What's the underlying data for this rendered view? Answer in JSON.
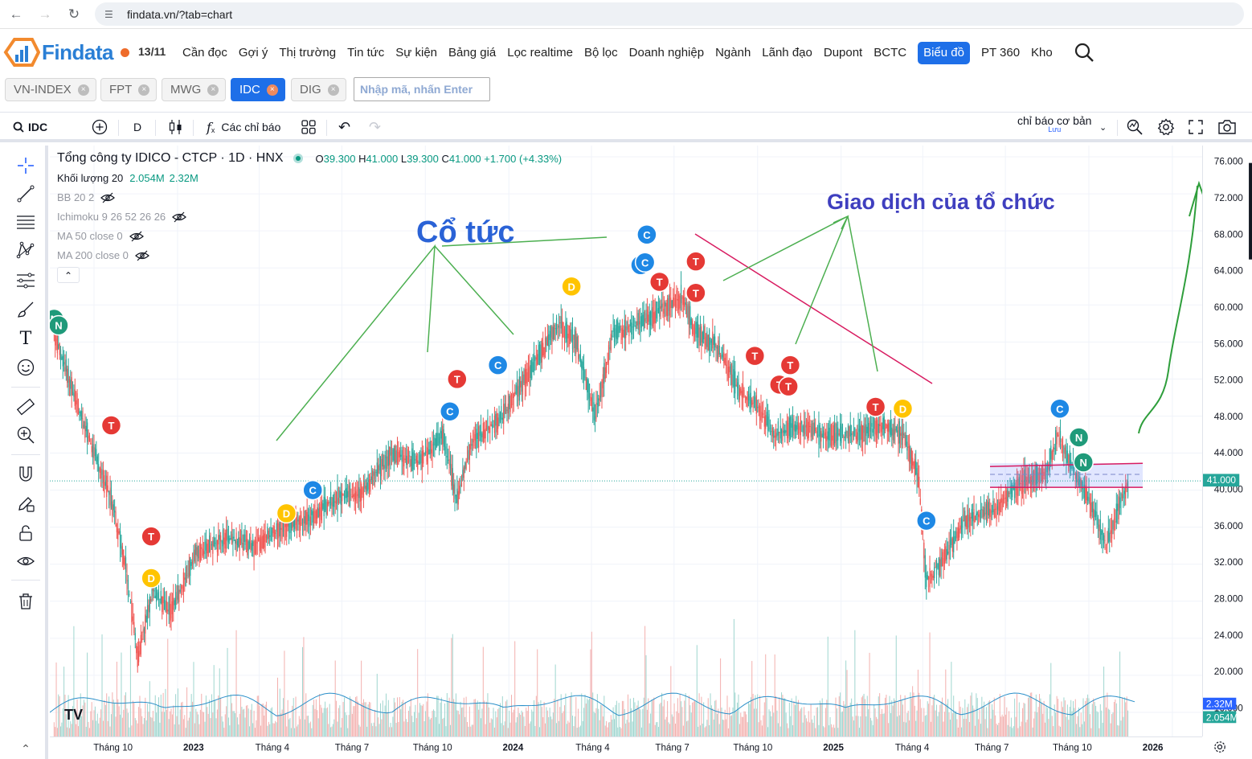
{
  "browser": {
    "url": "findata.vn/?tab=chart"
  },
  "site": {
    "logo_text": "Findata",
    "date": "13/11",
    "menu": [
      {
        "label": "Cần đọc",
        "active": false
      },
      {
        "label": "Gợi ý",
        "active": false
      },
      {
        "label": "Thị trường",
        "active": false
      },
      {
        "label": "Tin tức",
        "active": false
      },
      {
        "label": "Sự kiện",
        "active": false
      },
      {
        "label": "Bảng giá",
        "active": false
      },
      {
        "label": "Lọc realtime",
        "active": false
      },
      {
        "label": "Bộ lọc",
        "active": false
      },
      {
        "label": "Doanh nghiệp",
        "active": false
      },
      {
        "label": "Ngành",
        "active": false
      },
      {
        "label": "Lãnh đạo",
        "active": false
      },
      {
        "label": "Dupont",
        "active": false
      },
      {
        "label": "BCTC",
        "active": false
      },
      {
        "label": "Biểu đồ",
        "active": true
      },
      {
        "label": "PT 360",
        "active": false
      },
      {
        "label": "Kho",
        "active": false
      }
    ]
  },
  "tickers": [
    {
      "label": "VN-INDEX",
      "active": false
    },
    {
      "label": "FPT",
      "active": false
    },
    {
      "label": "MWG",
      "active": false
    },
    {
      "label": "IDC",
      "active": true
    },
    {
      "label": "DIG",
      "active": false
    }
  ],
  "ticker_input_placeholder": "Nhập mã, nhấn Enter",
  "toolbar": {
    "symbol": "IDC",
    "interval": "D",
    "indicators_label": "Các chỉ báo",
    "template_label": "chỉ báo cơ bản",
    "template_sub": "Lưu"
  },
  "legend": {
    "title": "Tổng công ty IDICO - CTCP · 1D · HNX",
    "ohlc": {
      "o_label": "O",
      "o": "39.300",
      "h_label": "H",
      "h": "41.000",
      "l_label": "L",
      "l": "39.300",
      "c_label": "C",
      "c": "41.000",
      "change": "+1.700 (+4.33%)"
    },
    "volume_label": "Khối lượng 20",
    "volume_v1": "2.054M",
    "volume_v2": "2.32M",
    "indicators": [
      "BB 20 2",
      "Ichimoku 9 26 52 26 26",
      "MA 50 close 0",
      "MA 200 close 0"
    ]
  },
  "colors": {
    "up": "#26a69a",
    "down": "#ef5350",
    "accent": "#1e6fe8",
    "annotation_green": "#4caf50",
    "annotation_pink": "#d81b60",
    "text_blue": "#2a62d6",
    "text_indigo": "#3f3fbf"
  },
  "annotations": {
    "dividend_text": "Cổ tức",
    "institution_text": "Giao dịch của tổ chức"
  },
  "chart_data": {
    "type": "candlestick",
    "symbol": "IDC",
    "interval": "1D",
    "exchange": "HNX",
    "last_price": "41.000",
    "volume_badges": [
      "2.32M",
      "2.054M"
    ],
    "ylim": [
      14,
      78
    ],
    "y_ticks": [
      "76.000",
      "72.000",
      "68.000",
      "64.000",
      "60.000",
      "56.000",
      "52.000",
      "48.000",
      "44.000",
      "40.000",
      "36.000",
      "32.000",
      "28.000",
      "24.000",
      "20.000",
      "16.000"
    ],
    "x_ticks": [
      "Tháng 10",
      "2023",
      "Tháng 4",
      "Tháng 7",
      "Tháng 10",
      "2024",
      "Tháng 4",
      "Tháng 7",
      "Tháng 10",
      "2025",
      "Tháng 4",
      "Tháng 7",
      "Tháng 10",
      "2026"
    ],
    "price_path": [
      {
        "date": "2022-08-18",
        "close": 57
      },
      {
        "date": "2022-09-10",
        "close": 50
      },
      {
        "date": "2022-10-01",
        "close": 44
      },
      {
        "date": "2022-10-20",
        "close": 39
      },
      {
        "date": "2022-11-05",
        "close": 32
      },
      {
        "date": "2022-11-18",
        "close": 22
      },
      {
        "date": "2022-12-05",
        "close": 29
      },
      {
        "date": "2022-12-25",
        "close": 27
      },
      {
        "date": "2023-01-20",
        "close": 33
      },
      {
        "date": "2023-02-25",
        "close": 35
      },
      {
        "date": "2023-03-25",
        "close": 34
      },
      {
        "date": "2023-04-25",
        "close": 36
      },
      {
        "date": "2023-05-25",
        "close": 37
      },
      {
        "date": "2023-06-25",
        "close": 39
      },
      {
        "date": "2023-07-25",
        "close": 40
      },
      {
        "date": "2023-08-25",
        "close": 44
      },
      {
        "date": "2023-09-25",
        "close": 43
      },
      {
        "date": "2023-10-20",
        "close": 46
      },
      {
        "date": "2023-11-05",
        "close": 39
      },
      {
        "date": "2023-11-20",
        "close": 45
      },
      {
        "date": "2023-12-25",
        "close": 48
      },
      {
        "date": "2024-01-25",
        "close": 53
      },
      {
        "date": "2024-02-25",
        "close": 58
      },
      {
        "date": "2024-03-15",
        "close": 56
      },
      {
        "date": "2024-04-05",
        "close": 48
      },
      {
        "date": "2024-04-25",
        "close": 57
      },
      {
        "date": "2024-05-25",
        "close": 58
      },
      {
        "date": "2024-06-25",
        "close": 60
      },
      {
        "date": "2024-07-10",
        "close": 61
      },
      {
        "date": "2024-07-25",
        "close": 57
      },
      {
        "date": "2024-08-15",
        "close": 56
      },
      {
        "date": "2024-09-10",
        "close": 51
      },
      {
        "date": "2024-10-01",
        "close": 49
      },
      {
        "date": "2024-10-20",
        "close": 46
      },
      {
        "date": "2024-11-15",
        "close": 47
      },
      {
        "date": "2024-12-15",
        "close": 46
      },
      {
        "date": "2025-01-15",
        "close": 46
      },
      {
        "date": "2025-02-15",
        "close": 47
      },
      {
        "date": "2025-03-10",
        "close": 46
      },
      {
        "date": "2025-03-28",
        "close": 41
      },
      {
        "date": "2025-04-05",
        "close": 30
      },
      {
        "date": "2025-04-20",
        "close": 32
      },
      {
        "date": "2025-05-20",
        "close": 37
      },
      {
        "date": "2025-06-20",
        "close": 38
      },
      {
        "date": "2025-07-20",
        "close": 41
      },
      {
        "date": "2025-08-15",
        "close": 42
      },
      {
        "date": "2025-08-28",
        "close": 46
      },
      {
        "date": "2025-09-10",
        "close": 43
      },
      {
        "date": "2025-10-01",
        "close": 39
      },
      {
        "date": "2025-10-20",
        "close": 34
      },
      {
        "date": "2025-11-13",
        "close": 41
      }
    ],
    "event_markers": [
      {
        "label": "N",
        "date": "2022-08-18",
        "price": 58.5,
        "kind": "N"
      },
      {
        "label": "N",
        "date": "2022-08-23",
        "price": 57.8,
        "kind": "N"
      },
      {
        "label": "T",
        "date": "2022-10-20",
        "price": 47,
        "kind": "T"
      },
      {
        "label": "T",
        "date": "2022-12-03",
        "price": 35,
        "kind": "T"
      },
      {
        "label": "D",
        "date": "2022-12-03",
        "price": 30.5,
        "kind": "D"
      },
      {
        "label": "D",
        "date": "2023-05-01",
        "price": 37.5,
        "kind": "D"
      },
      {
        "label": "C",
        "date": "2023-05-30",
        "price": 40,
        "kind": "C"
      },
      {
        "label": "C",
        "date": "2023-10-28",
        "price": 48.5,
        "kind": "C"
      },
      {
        "label": "T",
        "date": "2023-11-05",
        "price": 52,
        "kind": "T"
      },
      {
        "label": "C",
        "date": "2023-12-20",
        "price": 53.5,
        "kind": "C"
      },
      {
        "label": "D",
        "date": "2024-03-10",
        "price": 62,
        "kind": "D"
      },
      {
        "label": "C",
        "date": "2024-05-25",
        "price": 64.3,
        "kind": "C"
      },
      {
        "label": "C",
        "date": "2024-05-30",
        "price": 64.6,
        "kind": "C"
      },
      {
        "label": "C",
        "date": "2024-06-01",
        "price": 67.6,
        "kind": "C"
      },
      {
        "label": "T",
        "date": "2024-06-15",
        "price": 62.5,
        "kind": "T"
      },
      {
        "label": "T",
        "date": "2024-07-25",
        "price": 64.7,
        "kind": "T"
      },
      {
        "label": "T",
        "date": "2024-07-25",
        "price": 61.3,
        "kind": "T"
      },
      {
        "label": "T",
        "date": "2024-09-28",
        "price": 54.5,
        "kind": "T"
      },
      {
        "label": "T",
        "date": "2024-10-25",
        "price": 51.4,
        "kind": "T"
      },
      {
        "label": "T",
        "date": "2024-11-04",
        "price": 51.2,
        "kind": "T"
      },
      {
        "label": "T",
        "date": "2024-11-06",
        "price": 53.5,
        "kind": "T"
      },
      {
        "label": "T",
        "date": "2025-02-08",
        "price": 49,
        "kind": "T"
      },
      {
        "label": "D",
        "date": "2025-03-10",
        "price": 48.8,
        "kind": "D"
      },
      {
        "label": "C",
        "date": "2025-04-05",
        "price": 36.7,
        "kind": "C"
      },
      {
        "label": "C",
        "date": "2025-08-30",
        "price": 48.8,
        "kind": "C"
      },
      {
        "label": "N",
        "date": "2025-09-20",
        "price": 45.7,
        "kind": "N"
      },
      {
        "label": "N",
        "date": "2025-09-25",
        "price": 43
      }
    ],
    "price_zone": [
      40.3,
      42.9
    ],
    "grid": true
  }
}
